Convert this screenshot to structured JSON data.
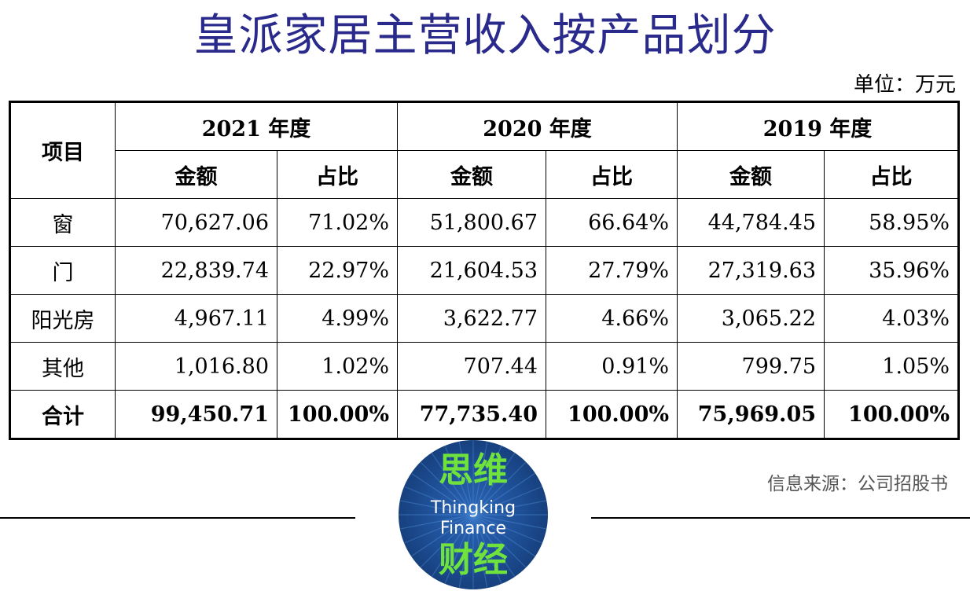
{
  "title": "皇派家居主营收入按产品划分",
  "unit": "单位：万元",
  "table": {
    "item_header": "项目",
    "years": [
      "2021 年度",
      "2020 年度",
      "2019 年度"
    ],
    "sub_headers": {
      "amount": "金额",
      "ratio": "占比"
    },
    "rows": [
      {
        "label": "窗",
        "values": [
          "70,627.06",
          "71.02%",
          "51,800.67",
          "66.64%",
          "44,784.45",
          "58.95%"
        ]
      },
      {
        "label": "门",
        "values": [
          "22,839.74",
          "22.97%",
          "21,604.53",
          "27.79%",
          "27,319.63",
          "35.96%"
        ]
      },
      {
        "label": "阳光房",
        "values": [
          "4,967.11",
          "4.99%",
          "3,622.77",
          "4.66%",
          "3,065.22",
          "4.03%"
        ]
      },
      {
        "label": "其他",
        "values": [
          "1,016.80",
          "1.02%",
          "707.44",
          "0.91%",
          "799.75",
          "1.05%"
        ]
      },
      {
        "label": "合计",
        "values": [
          "99,450.71",
          "100.00%",
          "77,735.40",
          "100.00%",
          "75,969.05",
          "100.00%"
        ]
      }
    ]
  },
  "source": "信息来源：公司招股书",
  "logo": {
    "cn_top": "思维",
    "en_line1": "Thingking",
    "en_line2": "Finance",
    "cn_bottom": "财经"
  },
  "colors": {
    "title": "#2a2a8c",
    "logo_green": "#6fe33c",
    "logo_blue": "#1e4f96",
    "source_gray": "#555555"
  }
}
